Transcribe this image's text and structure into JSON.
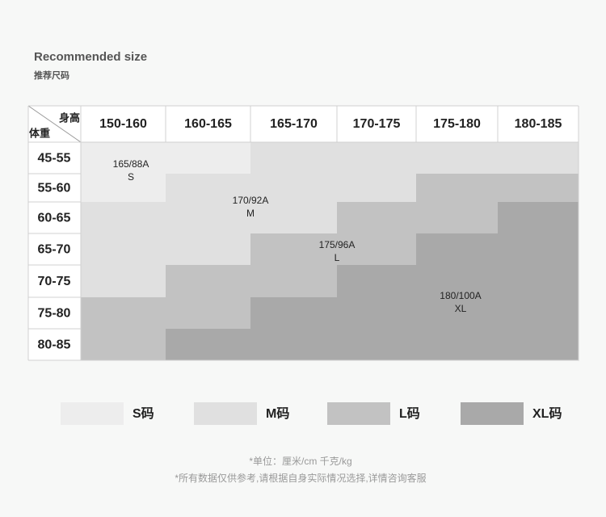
{
  "header": {
    "title": "Recommended size",
    "subtitle": "推荐尺码"
  },
  "table": {
    "corner": {
      "height": "身高",
      "weight": "体重"
    },
    "columns": [
      "150-160",
      "160-165",
      "165-170",
      "170-175",
      "175-180",
      "180-185"
    ],
    "rows": [
      "45-55",
      "55-60",
      "60-65",
      "65-70",
      "70-75",
      "75-80",
      "80-85"
    ],
    "cells": [
      [
        "S",
        "S",
        "M",
        "M",
        "M",
        "M"
      ],
      [
        "S",
        "M",
        "M",
        "M",
        "L",
        "L"
      ],
      [
        "M",
        "M",
        "M",
        "L",
        "L",
        "XL"
      ],
      [
        "M",
        "M",
        "L",
        "L",
        "XL",
        "XL"
      ],
      [
        "M",
        "L",
        "L",
        "XL",
        "XL",
        "XL"
      ],
      [
        "L",
        "L",
        "XL",
        "XL",
        "XL",
        "XL"
      ],
      [
        "L",
        "XL",
        "XL",
        "XL",
        "XL",
        "XL"
      ]
    ],
    "zones": [
      {
        "code": "165/88A",
        "size": "S"
      },
      {
        "code": "170/92A",
        "size": "M"
      },
      {
        "code": "175/96A",
        "size": "L"
      },
      {
        "code": "180/100A",
        "size": "XL"
      }
    ]
  },
  "legend": [
    {
      "size": "S",
      "label": "S码",
      "color": "#ededed"
    },
    {
      "size": "M",
      "label": "M码",
      "color": "#e0e0e0"
    },
    {
      "size": "L",
      "label": "L码",
      "color": "#c2c2c2"
    },
    {
      "size": "XL",
      "label": "XL码",
      "color": "#a9a9a9"
    }
  ],
  "notes": [
    "*单位：厘米/cm  千克/kg",
    "*所有数据仅供参考,请根据自身实际情况选择,详情咨询客服"
  ]
}
